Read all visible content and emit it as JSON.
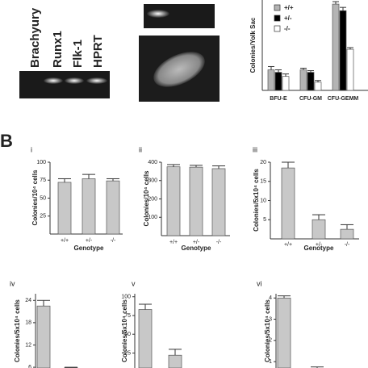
{
  "gel": {
    "lanes": [
      "Brachyury",
      "Runx1",
      "Flk-1",
      "HPRT"
    ]
  },
  "panel_label": "B",
  "chart_data": [
    {
      "type": "grouped-bar",
      "y_label": "Colonies/Yolk Sac",
      "categories": [
        "BFU-E",
        "CFU-GM",
        "CFU-GEMM"
      ],
      "ylim": [
        0,
        110
      ],
      "series": [
        {
          "name": "+/+",
          "color": "#b4b4b4",
          "values": [
            25,
            25,
            105
          ],
          "errors": [
            4,
            2,
            3
          ]
        },
        {
          "name": "+/-",
          "color": "#000000",
          "values": [
            22,
            22,
            97
          ],
          "errors": [
            3,
            2,
            4
          ]
        },
        {
          "name": "-/-",
          "color": "#ffffff",
          "values": [
            17,
            10,
            50
          ],
          "errors": [
            3,
            2,
            2
          ]
        }
      ]
    },
    {
      "type": "bar",
      "panel": "i",
      "y_label": "Colonies/10⁴ cells",
      "x_label": "Genotype",
      "categories": [
        "+/+",
        "+/-",
        "-/-"
      ],
      "values": [
        72,
        77,
        74
      ],
      "errors": [
        5,
        6,
        3
      ],
      "ylim": [
        0,
        100
      ],
      "yticks": [
        25,
        50,
        75,
        100
      ]
    },
    {
      "type": "bar",
      "panel": "ii",
      "y_label": "Colonies/10⁴ cells",
      "x_label": "Genotype",
      "categories": [
        "+/+",
        "+/-",
        "-/-"
      ],
      "values": [
        375,
        373,
        365
      ],
      "errors": [
        12,
        10,
        15
      ],
      "ylim": [
        0,
        400
      ],
      "yticks": [
        100,
        200,
        300,
        400
      ]
    },
    {
      "type": "bar",
      "panel": "iii",
      "y_label": "Colonies/5x10⁴ cells",
      "x_label": "Genotype",
      "categories": [
        "+/+",
        "+/-",
        "-/-"
      ],
      "values": [
        18.5,
        5,
        2.5
      ],
      "errors": [
        1.5,
        1.3,
        1.2
      ],
      "ylim": [
        0,
        20
      ],
      "yticks": [
        5,
        10,
        15,
        20
      ]
    },
    {
      "type": "bar",
      "panel": "iv",
      "y_label": "Colonies/5x10⁴ cells",
      "values": [
        22.5,
        5.9
      ],
      "errors": [
        1.5,
        0.1
      ],
      "ylim": [
        5.8,
        25.8
      ],
      "yticks": [
        6,
        12,
        18,
        24
      ]
    },
    {
      "type": "bar",
      "panel": "v",
      "y_label": "Colonies/5x10⁴ cells",
      "values": [
        83,
        22
      ],
      "errors": [
        7,
        8
      ],
      "ylim": [
        5,
        104
      ],
      "yticks": [
        25,
        50,
        75,
        100
      ]
    },
    {
      "type": "bar",
      "panel": "vi",
      "y_label": "Colonies/5x10⁴ cells",
      "values": [
        4,
        0.7
      ],
      "errors": [
        0.1,
        0.05
      ],
      "ylim": [
        0.7,
        4.2
      ],
      "yticks": [
        1,
        2,
        3,
        4
      ]
    }
  ]
}
